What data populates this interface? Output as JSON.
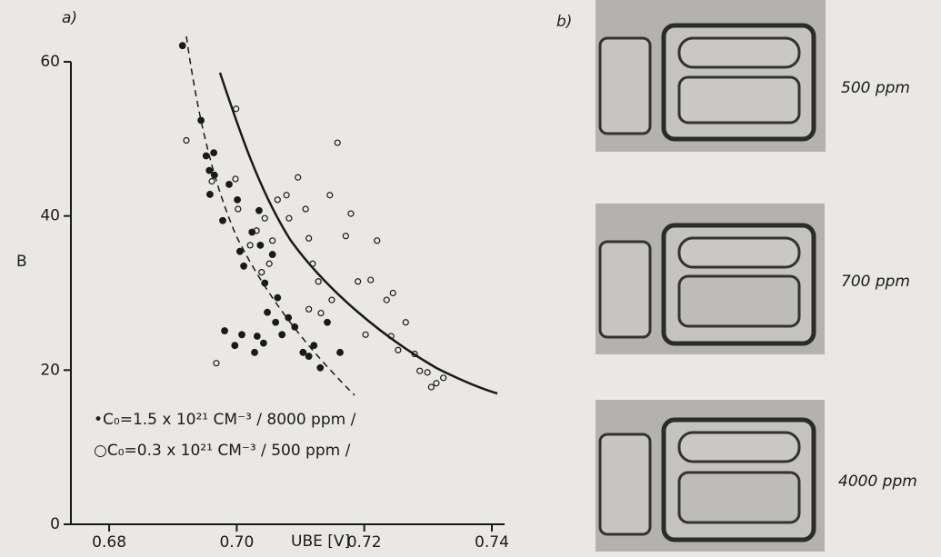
{
  "chart_data": {
    "type": "scatter",
    "panel_label": "a)",
    "y_label": "B",
    "x_label": "UBE [V]",
    "xlim": [
      0.674,
      0.742
    ],
    "xticks": [
      0.68,
      0.7,
      0.72,
      0.74
    ],
    "ylim": [
      0,
      60
    ],
    "yticks": [
      0,
      20,
      40,
      60
    ],
    "series": [
      {
        "name": "•C₀=1.5 x 10²¹ CM⁻³ / 8000 ppm /",
        "color": "#1a1a1a",
        "marker": "filled",
        "x": [
          0.6915,
          0.6944,
          0.6952,
          0.6964,
          0.6957,
          0.6965,
          0.6958,
          0.6978,
          0.6988,
          0.7001,
          0.7005,
          0.7011,
          0.7024,
          0.7035,
          0.7037,
          0.7044,
          0.7056,
          0.7064,
          0.7032,
          0.6981,
          0.7008,
          0.6997,
          0.7028,
          0.7042,
          0.7048,
          0.7061,
          0.7071,
          0.7081,
          0.7091,
          0.7104,
          0.7113,
          0.7131,
          0.7121,
          0.7142,
          0.7162
        ],
        "values": [
          62.1,
          52.4,
          47.8,
          48.2,
          45.9,
          45.3,
          42.8,
          39.4,
          44.1,
          42.1,
          35.4,
          33.5,
          37.9,
          40.7,
          36.2,
          31.3,
          35.0,
          29.4,
          24.4,
          25.1,
          24.6,
          23.2,
          22.3,
          23.5,
          27.5,
          26.2,
          24.6,
          26.8,
          25.6,
          22.3,
          21.8,
          20.3,
          23.2,
          26.2,
          22.3
        ]
      },
      {
        "name": "○C₀=0.3 x 10²¹ CM⁻³ / 500 ppm /",
        "color": "#1a1a1a",
        "marker": "open",
        "x": [
          0.6921,
          0.6961,
          0.6998,
          0.7002,
          0.7021,
          0.7031,
          0.7044,
          0.7056,
          0.7039,
          0.7051,
          0.7064,
          0.7078,
          0.7082,
          0.7096,
          0.7108,
          0.7113,
          0.7119,
          0.7128,
          0.7132,
          0.7149,
          0.7146,
          0.7158,
          0.7171,
          0.7179,
          0.719,
          0.7202,
          0.721,
          0.722,
          0.7235,
          0.7245,
          0.7253,
          0.7265,
          0.7279,
          0.7287,
          0.7299,
          0.7305,
          0.7313,
          0.7324,
          0.6968,
          0.7113,
          0.7242,
          0.6999
        ],
        "values": [
          49.8,
          44.5,
          44.8,
          40.9,
          36.2,
          38.1,
          39.7,
          36.8,
          32.7,
          33.8,
          42.1,
          42.7,
          39.7,
          45.0,
          40.9,
          37.1,
          33.8,
          31.5,
          27.4,
          29.1,
          42.7,
          49.5,
          37.4,
          40.3,
          31.5,
          24.6,
          31.7,
          36.8,
          29.1,
          30.0,
          22.6,
          26.2,
          22.1,
          19.9,
          19.7,
          17.8,
          18.3,
          19.0,
          20.9,
          27.9,
          24.4,
          53.9
        ]
      }
    ]
  },
  "micrographs": {
    "panel_label": "b)",
    "labels": [
      "500 ppm",
      "700 ppm",
      "4000 ppm"
    ]
  }
}
